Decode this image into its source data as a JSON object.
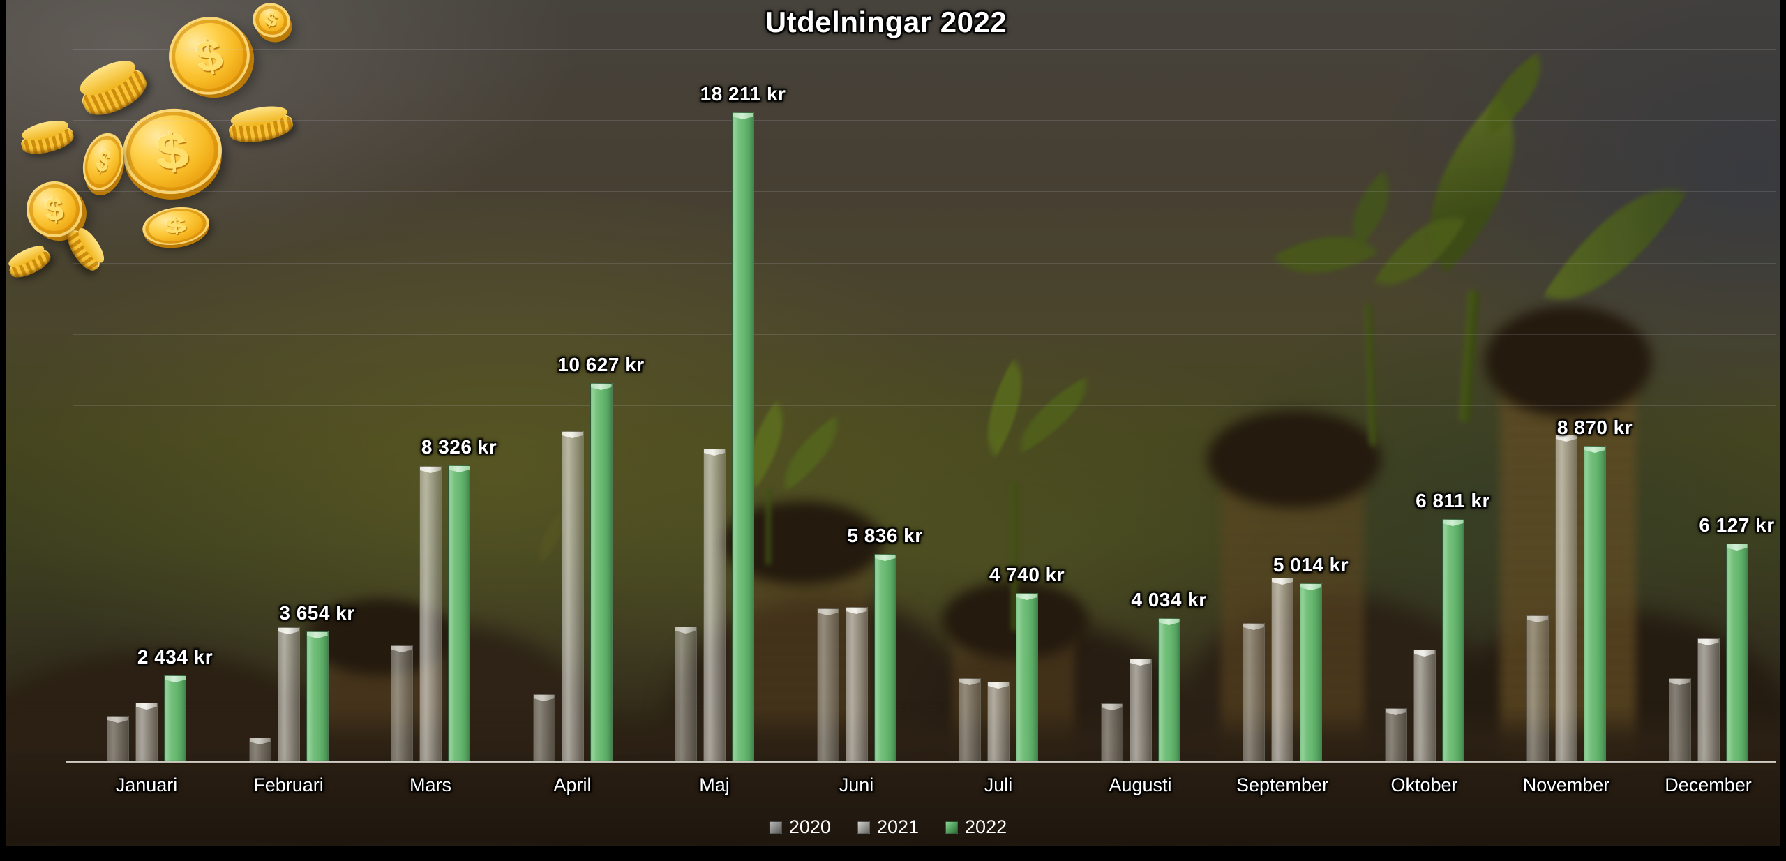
{
  "chart_data": {
    "type": "bar",
    "title": "Utdelningar 2022",
    "categories": [
      "Januari",
      "Februari",
      "Mars",
      "April",
      "Maj",
      "Juni",
      "Juli",
      "Augusti",
      "September",
      "Oktober",
      "November",
      "December"
    ],
    "series": [
      {
        "name": "2020",
        "color": "#b7b5ab",
        "values": [
          1290,
          690,
          3270,
          1900,
          3800,
          4300,
          2350,
          1640,
          3890,
          1500,
          4110,
          2350
        ]
      },
      {
        "name": "2021",
        "color": "#cfcdc3",
        "values": [
          1660,
          3780,
          8290,
          9270,
          8790,
          4340,
          2250,
          2890,
          5160,
          3150,
          9170,
          3460
        ]
      },
      {
        "name": "2022",
        "color": "#6cbb74",
        "values": [
          2434,
          3654,
          8326,
          10627,
          18211,
          5836,
          4740,
          4034,
          5014,
          6811,
          8870,
          6127
        ]
      }
    ],
    "value_labels": [
      "2 434 kr",
      "3 654 kr",
      "8 326 kr",
      "10 627 kr",
      "18 211 kr",
      "5 836 kr",
      "4 740 kr",
      "4 034 kr",
      "5 014 kr",
      "6 811 kr",
      "8 870 kr",
      "6 127 kr"
    ],
    "unit": "kr",
    "ylim": [
      0,
      20000
    ],
    "gridline_step": 2000,
    "grid": "horizontal-faint",
    "legend_position": "bottom-center",
    "legend": [
      "2020",
      "2021",
      "2022"
    ]
  },
  "decor": {
    "icons": [
      "gold-dollar-coin",
      "seedling-plant",
      "coin-stack",
      "soil-mound"
    ],
    "accent_green": "#6cbb74",
    "bar_gray": "#cfcdc3"
  }
}
